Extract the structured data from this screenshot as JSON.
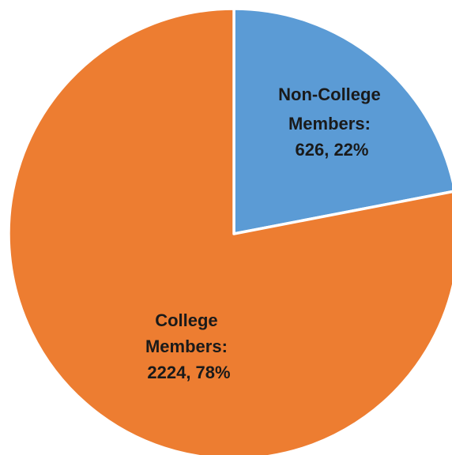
{
  "chart_data": {
    "type": "pie",
    "legend": "none",
    "slices": [
      {
        "category": "Non-College Members",
        "value": 626,
        "percent": "22%",
        "color": "#5b9bd5",
        "label_lines": [
          "Non-College",
          "Members:",
          "626, 22%"
        ]
      },
      {
        "category": "College Members",
        "value": 2224,
        "percent": "78%",
        "color": "#ed7d31",
        "label_lines": [
          "College",
          "Members:",
          "2224, 78%"
        ]
      }
    ]
  }
}
